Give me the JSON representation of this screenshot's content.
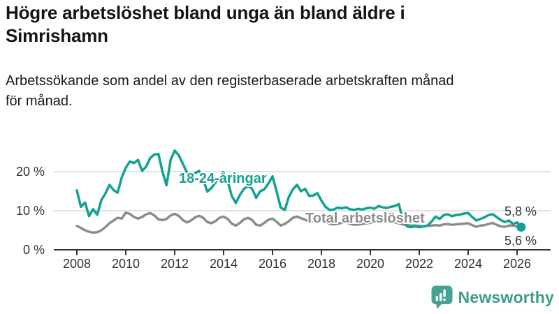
{
  "header": {
    "title": "Högre arbetslöshet bland unga än bland äldre i\nSimrishamn",
    "subtitle": "Arbetssökande som andel av den registerbaserade arbetskraften månad\nför månad."
  },
  "chart_data": {
    "type": "line",
    "x_unit": "decimal-year, monthly-cadence (every 2nd month plotted)",
    "x_start": 2008.0,
    "x_step_years": 0.166667,
    "xlim": [
      2008.0,
      2026.4
    ],
    "ylim": [
      0,
      26
    ],
    "grid": "horizontal",
    "legend_position": "inline-labels",
    "x_ticks": [
      {
        "year": 2008,
        "label": "2008"
      },
      {
        "year": 2010,
        "label": "2010"
      },
      {
        "year": 2012,
        "label": "2012"
      },
      {
        "year": 2014,
        "label": "2014"
      },
      {
        "year": 2016,
        "label": "2016"
      },
      {
        "year": 2018,
        "label": "2018"
      },
      {
        "year": 2020,
        "label": "2020"
      },
      {
        "year": 2022,
        "label": "2022"
      },
      {
        "year": 2024,
        "label": "2024"
      },
      {
        "year": 2026,
        "label": "2026"
      }
    ],
    "y_ticks": [
      {
        "value": 0,
        "label": "0 %"
      },
      {
        "value": 10,
        "label": "10 %"
      },
      {
        "value": 20,
        "label": "20 %"
      }
    ],
    "series": [
      {
        "id": "youth",
        "name": "18-24-åringar",
        "color": "#12a192",
        "end_label": "5,8 %",
        "end_marker": true,
        "values": [
          15.2,
          11.0,
          12.1,
          8.6,
          10.4,
          9.0,
          12.7,
          14.4,
          16.6,
          15.3,
          14.6,
          18.5,
          21.0,
          22.6,
          22.2,
          23.0,
          20.2,
          21.3,
          23.5,
          24.4,
          24.5,
          20.0,
          16.5,
          23.0,
          25.4,
          24.2,
          22.0,
          19.8,
          18.9,
          19.6,
          20.2,
          18.0,
          14.9,
          15.8,
          17.2,
          18.3,
          18.8,
          17.6,
          13.8,
          12.0,
          14.0,
          15.6,
          16.3,
          15.6,
          13.3,
          15.0,
          15.5,
          17.0,
          18.8,
          15.0,
          10.8,
          10.2,
          13.5,
          15.5,
          16.6,
          15.0,
          15.6,
          13.8,
          13.9,
          14.5,
          12.6,
          11.0,
          10.2,
          10.3,
          10.8,
          10.6,
          10.9,
          10.4,
          10.2,
          10.5,
          10.3,
          10.6,
          10.8,
          10.5,
          11.2,
          10.9,
          10.7,
          11.0,
          11.2,
          11.7,
          7.5,
          6.0,
          5.8,
          6.0,
          5.8,
          6.0,
          6.2,
          7.2,
          8.5,
          7.9,
          8.9,
          9.1,
          8.6,
          8.9,
          9.0,
          9.3,
          9.4,
          8.4,
          7.5,
          7.9,
          8.3,
          8.9,
          9.1,
          8.4,
          7.6,
          7.1,
          7.5,
          6.6,
          7.0,
          5.8
        ]
      },
      {
        "id": "total",
        "name": "Total arbetslöshet",
        "color": "#8c8c8c",
        "end_label": "5,6 %",
        "end_marker": false,
        "values": [
          6.1,
          5.6,
          5.0,
          4.6,
          4.4,
          4.5,
          5.0,
          5.8,
          6.8,
          7.5,
          8.2,
          8.0,
          9.5,
          9.2,
          8.4,
          8.0,
          8.4,
          9.1,
          9.4,
          8.8,
          7.8,
          7.6,
          7.9,
          8.8,
          9.2,
          8.7,
          7.6,
          7.0,
          7.5,
          8.3,
          8.7,
          8.2,
          7.1,
          6.8,
          7.3,
          8.2,
          8.5,
          7.9,
          6.7,
          6.2,
          6.9,
          7.8,
          8.2,
          7.6,
          6.4,
          6.2,
          6.9,
          7.7,
          8.0,
          7.2,
          6.2,
          6.6,
          7.3,
          8.2,
          8.5,
          8.1,
          7.7,
          7.2,
          7.4,
          7.7,
          7.7,
          7.2,
          6.7,
          6.5,
          6.7,
          6.9,
          7.0,
          6.7,
          6.4,
          6.5,
          6.6,
          6.8,
          6.9,
          7.1,
          7.4,
          7.4,
          7.2,
          7.1,
          7.0,
          6.8,
          6.5,
          6.3,
          6.2,
          6.2,
          6.1,
          6.0,
          6.1,
          6.2,
          6.3,
          6.2,
          6.5,
          6.6,
          6.4,
          6.5,
          6.6,
          6.7,
          6.8,
          6.3,
          5.9,
          6.2,
          6.3,
          6.6,
          6.9,
          6.4,
          6.0,
          5.9,
          6.2,
          6.2,
          6.0,
          5.6
        ]
      }
    ],
    "colors": {
      "grid": "#d9d9d9",
      "axis": "#333333",
      "tick_text": "#333333",
      "end_label_text": "#333333"
    }
  },
  "logo": {
    "text": "Newsworthy",
    "icon": "newsworthy-bar-chart-speech-bubble-icon",
    "icon_color": "#46a393",
    "text_color": "#3e9c8b"
  }
}
